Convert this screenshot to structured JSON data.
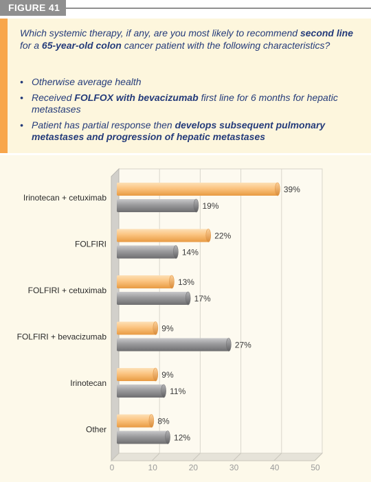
{
  "figure_label": "FIGURE 41",
  "question": {
    "intro_1": "Which systemic therapy, if any, are you most likely to recommend ",
    "intro_bold_1": "second line",
    "intro_2": " for a ",
    "intro_bold_2": "65-year-old colon",
    "intro_3": " cancer patient with the following characteristics?",
    "bullet_1": "Otherwise average health",
    "bullet_2_a": "Received ",
    "bullet_2_bold": "FOLFOX with bevacizumab",
    "bullet_2_b": " first line for 6 months for hepatic metastases",
    "bullet_3_a": "Patient has partial response then ",
    "bullet_3_bold": "develops subsequent pulmonary metastases and progression of hepatic metastases"
  },
  "colors": {
    "orange_bar": "#fbc37f",
    "gray_bar": "#9a9a9c",
    "accent": "#f8a64a",
    "text_blue": "#243b7a"
  },
  "chart_data": {
    "type": "bar",
    "orientation": "horizontal",
    "categories": [
      "Irinotecan + cetuximab",
      "FOLFIRI",
      "FOLFIRI + cetuximab",
      "FOLFIRI + bevacizumab",
      "Irinotecan",
      "Other"
    ],
    "series": [
      {
        "color": "orange",
        "values": [
          39,
          22,
          13,
          9,
          9,
          8
        ]
      },
      {
        "color": "gray",
        "values": [
          19,
          14,
          17,
          27,
          11,
          12
        ]
      }
    ],
    "value_labels": [
      [
        "39%",
        "22%",
        "13%",
        "9%",
        "9%",
        "8%"
      ],
      [
        "19%",
        "14%",
        "17%",
        "27%",
        "11%",
        "12%"
      ]
    ],
    "x_ticks": [
      "0",
      "10",
      "20",
      "30",
      "40",
      "50"
    ],
    "xlim": [
      0,
      50
    ],
    "grid": true
  }
}
